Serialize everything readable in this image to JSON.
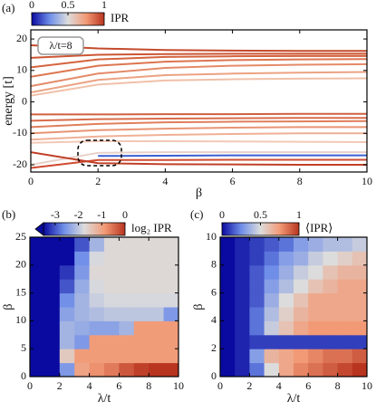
{
  "chart_data": [
    {
      "type": "line",
      "panel_label": "(a)",
      "xlabel": "β",
      "ylabel": "energy [t]",
      "annotation": "λ/t=8",
      "x": [
        0,
        2,
        4,
        6,
        8,
        10
      ],
      "xlim": [
        0,
        10
      ],
      "xticks": [
        0,
        2,
        4,
        6,
        8,
        10
      ],
      "ylim": [
        -22.3,
        22.9
      ],
      "yticks": [
        -20,
        -10,
        0,
        10,
        20
      ],
      "colorbar": {
        "label": "IPR",
        "lim": [
          0,
          1
        ],
        "ticks": [
          0,
          0.5,
          1
        ]
      },
      "colormap": [
        "#0a0aa0",
        "#6f8ee8",
        "#dcdcdc",
        "#f29a76",
        "#b8341f"
      ],
      "series": [
        {
          "color": "#c44a2c",
          "values": [
            18,
            17,
            16.5,
            16.3,
            16.2,
            16.2
          ]
        },
        {
          "color": "#cc5634",
          "values": [
            14,
            15,
            15.2,
            15.3,
            15.3,
            15.3
          ]
        },
        {
          "color": "#d4643e",
          "values": [
            11,
            13.5,
            14.3,
            14.5,
            14.6,
            14.6
          ]
        },
        {
          "color": "#dc7550",
          "values": [
            8,
            11.5,
            12.8,
            13.3,
            13.5,
            13.6
          ]
        },
        {
          "color": "#e48a68",
          "values": [
            5,
            9,
            10.8,
            11.5,
            11.8,
            12
          ]
        },
        {
          "color": "#eca282",
          "values": [
            3,
            7,
            8.5,
            9,
            9.3,
            9.5
          ]
        },
        {
          "color": "#f0c0a8",
          "values": [
            2,
            5.5,
            6.8,
            7.2,
            7.4,
            7.5
          ]
        },
        {
          "color": "#d06040",
          "values": [
            -4,
            -4,
            -3.9,
            -3.9,
            -3.8,
            -3.8
          ]
        },
        {
          "color": "#d86c4a",
          "values": [
            -6,
            -5.5,
            -5.3,
            -5.2,
            -5.1,
            -5.1
          ]
        },
        {
          "color": "#e07e5c",
          "values": [
            -8,
            -7,
            -6.5,
            -6.3,
            -6.2,
            -6.1
          ]
        },
        {
          "color": "#e89474",
          "values": [
            -10,
            -9,
            -8.5,
            -8.2,
            -8,
            -8
          ]
        },
        {
          "color": "#efb096",
          "values": [
            -12,
            -11,
            -10.5,
            -10.2,
            -10,
            -10
          ]
        },
        {
          "color": "#f2c8b6",
          "values": [
            -13,
            -12.5,
            -12.5,
            -12.6,
            -12.7,
            -12.8
          ]
        },
        {
          "color": "#e8d0c8",
          "values": [
            -20,
            -16.2,
            -16,
            -16,
            -16,
            -16
          ]
        },
        {
          "color": "#3a5fd0",
          "values": [
            null,
            -17.2,
            -17.1,
            -17,
            -17,
            -17
          ]
        },
        {
          "color": "#d04a30",
          "values": [
            -21,
            -18.5,
            -18.5,
            -18.4,
            -18.4,
            -18.4
          ]
        },
        {
          "color": "#c04028",
          "values": [
            -16,
            -19.5,
            -19.8,
            -19.9,
            -20,
            -20
          ]
        }
      ]
    },
    {
      "type": "heatmap",
      "panel_label": "(b)",
      "xlabel": "λ/t",
      "ylabel": "β",
      "xlim": [
        0,
        10
      ],
      "xticks": [
        0,
        2,
        4,
        6,
        8,
        10
      ],
      "ylim": [
        0,
        25
      ],
      "yticks": [
        0,
        5,
        10,
        15,
        20,
        25
      ],
      "colorbar": {
        "label": "log₂ IPR",
        "lim": [
          -3.5,
          0
        ],
        "ticks": [
          -3,
          -2,
          -1,
          0
        ],
        "extend": "min"
      },
      "colormap": [
        "#0a0aa0",
        "#6f8ee8",
        "#dcdcdc",
        "#f29a76",
        "#b8341f"
      ],
      "xbins": [
        0,
        1,
        2,
        3,
        4,
        5,
        6,
        7,
        8,
        9,
        10
      ],
      "ybins": [
        0,
        2.5,
        5,
        7.5,
        10,
        12.5,
        15,
        17.5,
        20,
        22.5,
        25
      ],
      "z": [
        [
          -3.5,
          -3.5,
          -2.5,
          -1,
          -0.8,
          -0.6,
          -0.3,
          -0.1,
          0,
          0
        ],
        [
          -3.5,
          -3.5,
          -1.5,
          -0.9,
          -0.9,
          -0.9,
          -0.9,
          -0.9,
          -0.9,
          -0.9
        ],
        [
          -3.5,
          -3.5,
          -2.2,
          -2.5,
          -0.9,
          -0.9,
          -0.9,
          -0.9,
          -0.9,
          -0.9
        ],
        [
          -3.5,
          -3.5,
          -2.2,
          -2.3,
          -2.4,
          -2.4,
          -2.2,
          -0.9,
          -0.9,
          -0.9
        ],
        [
          -3.5,
          -3.5,
          -2.4,
          -2.2,
          -2.1,
          -2,
          -2,
          -2,
          -2,
          -2.5
        ],
        [
          -3.5,
          -3.5,
          -2.6,
          -2.2,
          -1.9,
          -1.8,
          -1.8,
          -1.8,
          -1.8,
          -1.8
        ],
        [
          -3.5,
          -3.5,
          -3,
          -2.3,
          -1.8,
          -1.7,
          -1.7,
          -1.7,
          -1.7,
          -1.7
        ],
        [
          -3.5,
          -3.5,
          -3.2,
          -2.5,
          -1.7,
          -1.7,
          -1.7,
          -1.7,
          -1.7,
          -1.7
        ],
        [
          -3.5,
          -3.5,
          -3.5,
          -2.6,
          -1.8,
          -1.7,
          -1.7,
          -1.7,
          -1.7,
          -1.7
        ],
        [
          -3.5,
          -3.5,
          -3.5,
          -3,
          -2.2,
          -1.7,
          -1.7,
          -1.7,
          -1.7,
          -1.7
        ]
      ]
    },
    {
      "type": "heatmap",
      "panel_label": "(c)",
      "xlabel": "λ/t",
      "ylabel": "β",
      "xlim": [
        0,
        10
      ],
      "xticks": [
        0,
        2,
        4,
        6,
        8,
        10
      ],
      "ylim": [
        0,
        10
      ],
      "yticks": [
        0,
        2,
        4,
        6,
        8,
        10
      ],
      "colorbar": {
        "label": "⟨IPR⟩",
        "lim": [
          0,
          1
        ],
        "ticks": [
          0,
          0.5,
          1
        ]
      },
      "colormap": [
        "#0a0aa0",
        "#6f8ee8",
        "#dcdcdc",
        "#f29a76",
        "#b8341f"
      ],
      "xbins": [
        0,
        1,
        2,
        3,
        4,
        5,
        6,
        7,
        8,
        9,
        10
      ],
      "ybins": [
        0,
        1,
        2,
        3,
        4,
        5,
        6,
        7,
        8,
        9,
        10
      ],
      "z": [
        [
          0,
          0.05,
          0.2,
          0.5,
          0.7,
          0.8,
          0.85,
          0.9,
          0.95,
          1
        ],
        [
          0,
          0.05,
          0.3,
          0.65,
          0.7,
          0.75,
          0.8,
          0.85,
          0.85,
          0.9
        ],
        [
          0,
          0.05,
          0.1,
          0.1,
          0.1,
          0.1,
          0.1,
          0.1,
          0.1,
          0.1
        ],
        [
          0,
          0.05,
          0.2,
          0.45,
          0.6,
          0.7,
          0.75,
          0.75,
          0.75,
          0.75
        ],
        [
          0,
          0.05,
          0.2,
          0.4,
          0.55,
          0.65,
          0.7,
          0.7,
          0.7,
          0.7
        ],
        [
          0,
          0.05,
          0.15,
          0.35,
          0.5,
          0.6,
          0.7,
          0.7,
          0.7,
          0.7
        ],
        [
          0,
          0.05,
          0.15,
          0.3,
          0.4,
          0.5,
          0.6,
          0.65,
          0.7,
          0.7
        ],
        [
          0,
          0.05,
          0.15,
          0.25,
          0.35,
          0.45,
          0.5,
          0.6,
          0.65,
          0.65
        ],
        [
          0,
          0.05,
          0.1,
          0.2,
          0.3,
          0.35,
          0.45,
          0.5,
          0.55,
          0.6
        ],
        [
          0,
          0.05,
          0.1,
          0.15,
          0.2,
          0.3,
          0.35,
          0.4,
          0.4,
          0.45
        ]
      ]
    }
  ]
}
